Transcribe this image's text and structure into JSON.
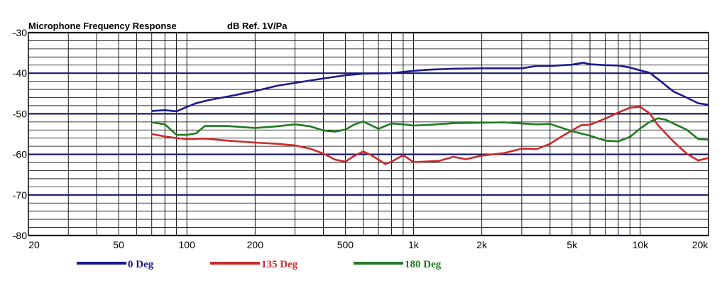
{
  "chart_data": {
    "type": "line",
    "title": "Microphone Frequency Response",
    "subtitle": "dB Ref. 1V/Pa",
    "xscale": "log",
    "xlim": [
      20,
      20000
    ],
    "ylim": [
      -80,
      -30
    ],
    "x_ticks": [
      {
        "value": 20,
        "label": "20"
      },
      {
        "value": 50,
        "label": "50"
      },
      {
        "value": 100,
        "label": "100"
      },
      {
        "value": 200,
        "label": "200"
      },
      {
        "value": 500,
        "label": "500"
      },
      {
        "value": 1000,
        "label": "1k"
      },
      {
        "value": 2000,
        "label": "2k"
      },
      {
        "value": 5000,
        "label": "5k"
      },
      {
        "value": 10000,
        "label": "10k"
      },
      {
        "value": 20000,
        "label": "20k"
      }
    ],
    "y_ticks": [
      {
        "value": -30,
        "label": "-30"
      },
      {
        "value": -40,
        "label": "-40"
      },
      {
        "value": -50,
        "label": "-50"
      },
      {
        "value": -60,
        "label": "-60"
      },
      {
        "value": -70,
        "label": "-70"
      },
      {
        "value": -80,
        "label": "-80"
      }
    ],
    "grid": true,
    "legend_position": "bottom",
    "series": [
      {
        "name": "0 Deg",
        "color": "#1a1a8c",
        "x": [
          70,
          80,
          90,
          100,
          110,
          125,
          140,
          160,
          180,
          200,
          250,
          300,
          400,
          500,
          600,
          800,
          1000,
          1200,
          1500,
          2000,
          2500,
          3000,
          3500,
          4000,
          5000,
          5600,
          6000,
          7000,
          8000,
          9000,
          10000,
          11000,
          12000,
          14000,
          16000,
          18000,
          20000
        ],
        "y": [
          -49.3,
          -49.1,
          -49.4,
          -48.3,
          -47.4,
          -46.6,
          -46.1,
          -45.5,
          -44.9,
          -44.4,
          -43.1,
          -42.4,
          -41.3,
          -40.5,
          -40.1,
          -40.0,
          -39.4,
          -39.1,
          -38.9,
          -38.8,
          -38.8,
          -38.8,
          -38.2,
          -38.2,
          -37.9,
          -37.4,
          -37.8,
          -38.0,
          -38.1,
          -38.6,
          -39.3,
          -39.9,
          -41.5,
          -44.5,
          -46.0,
          -47.4,
          -47.8
        ]
      },
      {
        "name": "135 Deg",
        "color": "#cc2a2a",
        "x": [
          70,
          80,
          90,
          100,
          120,
          150,
          200,
          250,
          300,
          350,
          400,
          450,
          500,
          550,
          600,
          650,
          700,
          750,
          800,
          900,
          1000,
          1100,
          1300,
          1500,
          1700,
          2000,
          2500,
          3000,
          3500,
          4000,
          4500,
          5000,
          5500,
          6000,
          7000,
          8000,
          9000,
          10000,
          11000,
          12000,
          14000,
          16000,
          18000,
          20000
        ],
        "y": [
          -55.0,
          -55.6,
          -56.0,
          -56.2,
          -56.1,
          -56.6,
          -57.1,
          -57.4,
          -57.8,
          -58.6,
          -59.8,
          -61.3,
          -61.8,
          -60.3,
          -59.3,
          -60.2,
          -61.3,
          -62.4,
          -61.8,
          -60.2,
          -61.9,
          -61.8,
          -61.6,
          -60.6,
          -61.2,
          -60.3,
          -59.7,
          -58.6,
          -58.7,
          -57.4,
          -55.6,
          -54.1,
          -52.8,
          -52.7,
          -51.2,
          -49.7,
          -48.5,
          -48.3,
          -49.9,
          -52.9,
          -56.8,
          -59.8,
          -61.5,
          -60.9
        ]
      },
      {
        "name": "180 Deg",
        "color": "#1f7a1f",
        "x": [
          70,
          80,
          90,
          100,
          110,
          120,
          150,
          200,
          250,
          300,
          350,
          400,
          450,
          500,
          550,
          600,
          700,
          800,
          900,
          1000,
          1200,
          1500,
          2000,
          2500,
          3000,
          3500,
          4000,
          5000,
          6000,
          7000,
          8000,
          9000,
          10000,
          11000,
          12000,
          13000,
          14000,
          16000,
          18000,
          20000
        ],
        "y": [
          -52.1,
          -52.6,
          -55.2,
          -55.2,
          -54.8,
          -53.0,
          -53.0,
          -53.5,
          -53.1,
          -52.6,
          -53.1,
          -54.1,
          -54.4,
          -53.9,
          -52.6,
          -51.9,
          -53.7,
          -52.4,
          -52.6,
          -52.9,
          -52.7,
          -52.3,
          -52.2,
          -52.1,
          -52.4,
          -52.6,
          -52.5,
          -54.3,
          -55.4,
          -56.6,
          -56.8,
          -55.7,
          -53.6,
          -52.0,
          -51.1,
          -51.5,
          -52.4,
          -53.9,
          -56.2,
          -56.4
        ]
      }
    ]
  }
}
